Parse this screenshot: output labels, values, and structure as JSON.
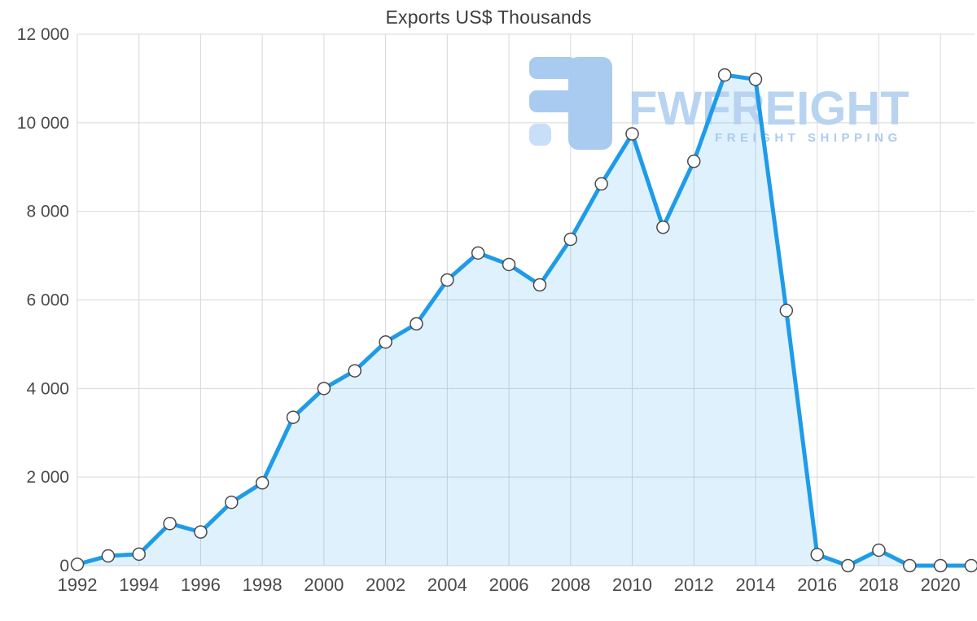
{
  "page": {
    "title": "Exports US$ Thousands"
  },
  "watermark": {
    "title": "FWFREIGHT",
    "subtitle": "FREIGHT SHIPPING"
  },
  "chart_data": {
    "type": "area",
    "title": "Exports US$ Thousands",
    "series_name": "Exports US$ Thousands",
    "x": [
      1992,
      1993,
      1994,
      1995,
      1996,
      1997,
      1998,
      1999,
      2000,
      2001,
      2002,
      2003,
      2004,
      2005,
      2006,
      2007,
      2008,
      2009,
      2010,
      2011,
      2012,
      2013,
      2014,
      2015,
      2016,
      2017,
      2018,
      2019,
      2020,
      2021
    ],
    "values": [
      30,
      220,
      260,
      950,
      760,
      1430,
      1870,
      3350,
      4000,
      4400,
      5050,
      5460,
      6450,
      7060,
      6800,
      6340,
      7370,
      8620,
      9750,
      7640,
      9130,
      11080,
      10980,
      5760,
      250,
      0,
      350,
      0,
      0,
      0
    ],
    "ylim": [
      0,
      12000
    ],
    "yticks": [
      0,
      2000,
      4000,
      6000,
      8000,
      10000,
      12000
    ],
    "ytick_labels": [
      "0",
      "2 000",
      "4 000",
      "6 000",
      "8 000",
      "10 000",
      "12 000"
    ],
    "xticks": [
      1992,
      1994,
      1996,
      1998,
      2000,
      2002,
      2004,
      2006,
      2008,
      2010,
      2012,
      2014,
      2016,
      2018,
      2020
    ],
    "grid": true,
    "legend": "none",
    "colors": {
      "line": "#1e9be9",
      "area_fill": "#1e9be9",
      "area_opacity": "0.14",
      "marker_fill": "#ffffff",
      "marker_stroke": "#4a4a4a",
      "grid": "#d8d8d8",
      "tick_label": "#4a4a4a",
      "title": "#3d3d3d",
      "watermark_text": "#b5d2f1",
      "watermark_sub": "#a9c9ef",
      "logo": "#a5c9f0",
      "logo_light": "#c6def7"
    }
  }
}
